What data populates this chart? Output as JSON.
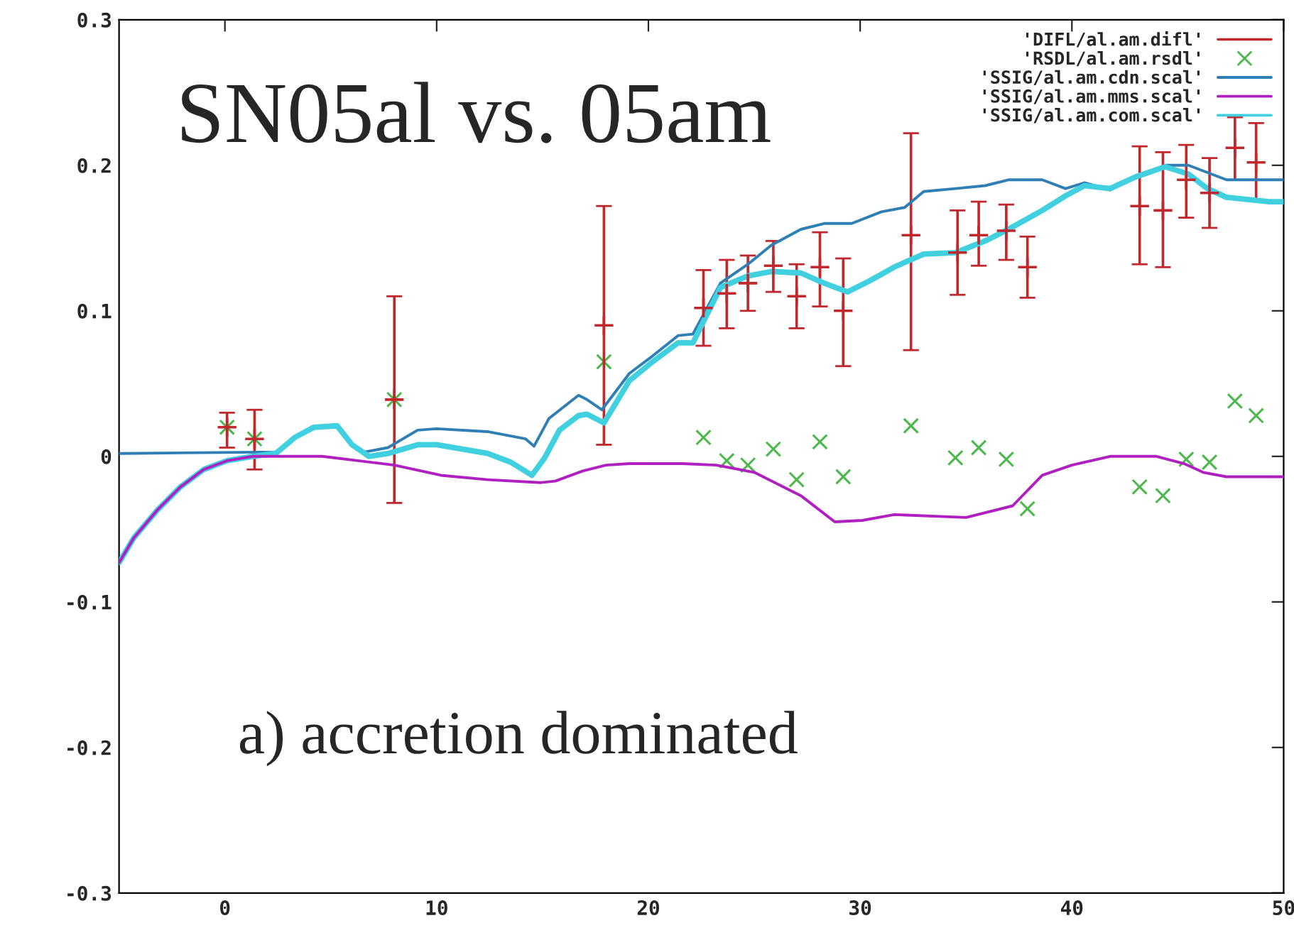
{
  "chart_data": {
    "type": "line",
    "title": "SN05al vs. 05am",
    "annotations": [
      "a) accretion dominated"
    ],
    "xlim": [
      -5,
      50
    ],
    "xticks": [
      0,
      10,
      20,
      30,
      40,
      50
    ],
    "ylim": [
      -0.3,
      0.3
    ],
    "yticks": [
      -0.3,
      -0.2,
      -0.1,
      0,
      0.1,
      0.2,
      0.3
    ],
    "legend": "top right",
    "grid": false,
    "series": [
      {
        "name": "'DIFL/al.am.difl'",
        "type": "scatter",
        "marker": "cross",
        "color": "#c0282d",
        "x": [
          0.1,
          1.4,
          8.0,
          17.9,
          22.6,
          23.7,
          24.7,
          25.9,
          27.0,
          28.1,
          29.2,
          32.4,
          34.6,
          35.6,
          36.9,
          37.9,
          43.2,
          44.3,
          45.4,
          46.5,
          47.7,
          48.7
        ],
        "values": [
          0.02,
          0.012,
          0.039,
          0.09,
          0.102,
          0.112,
          0.119,
          0.131,
          0.11,
          0.13,
          0.1,
          0.152,
          0.14,
          0.152,
          0.155,
          0.13,
          0.172,
          0.169,
          0.19,
          0.181,
          0.212,
          0.202
        ],
        "errors": [
          [
            0.006,
            0.03
          ],
          [
            -0.009,
            0.032
          ],
          [
            -0.032,
            0.11
          ],
          [
            0.008,
            0.172
          ],
          [
            0.076,
            0.128
          ],
          [
            0.088,
            0.135
          ],
          [
            0.1,
            0.138
          ],
          [
            0.113,
            0.148
          ],
          [
            0.088,
            0.132
          ],
          [
            0.103,
            0.154
          ],
          [
            0.062,
            0.136
          ],
          [
            0.073,
            0.222
          ],
          [
            0.111,
            0.169
          ],
          [
            0.131,
            0.175
          ],
          [
            0.135,
            0.173
          ],
          [
            0.109,
            0.151
          ],
          [
            0.132,
            0.213
          ],
          [
            0.13,
            0.209
          ],
          [
            0.164,
            0.214
          ],
          [
            0.157,
            0.205
          ],
          [
            0.19,
            0.233
          ],
          [
            0.176,
            0.229
          ]
        ]
      },
      {
        "name": "'RSDL/al.am.rsdl'",
        "type": "scatter",
        "marker": "cross",
        "color": "#4cb84c",
        "x": [
          0.1,
          1.4,
          8.0,
          17.9,
          22.6,
          23.7,
          24.7,
          25.9,
          27.0,
          28.1,
          29.2,
          32.4,
          34.5,
          35.6,
          36.9,
          37.9,
          43.2,
          44.3,
          45.4,
          46.5,
          47.7,
          48.7
        ],
        "values": [
          0.02,
          0.012,
          0.039,
          0.065,
          0.013,
          -0.003,
          -0.006,
          0.005,
          -0.016,
          0.01,
          -0.014,
          0.021,
          -0.001,
          0.006,
          -0.002,
          -0.036,
          -0.021,
          -0.027,
          -0.002,
          -0.004,
          0.038,
          0.028
        ]
      },
      {
        "name": "'SSIG/al.am.cdn.scal'",
        "marker": "none",
        "color": "#2f7fb5",
        "x": [
          -5,
          2.4,
          3.3,
          4.2,
          5.3,
          6.0,
          6.6,
          7.7,
          9.1,
          10.0,
          12.4,
          14.2,
          14.6,
          15.3,
          16.7,
          17.1,
          17.8,
          19.1,
          20.2,
          21.4,
          22.1,
          23.4,
          24.7,
          25.8,
          27.2,
          28.3,
          29.6,
          31.0,
          32.1,
          33.0,
          34.5,
          35.9,
          37.0,
          38.6,
          39.7,
          40.6,
          41.8,
          43.0,
          44.4,
          45.5,
          46.4,
          47.3,
          49.3,
          50
        ],
        "values": [
          0.002,
          0.003,
          0.013,
          0.02,
          0.021,
          0.008,
          0.003,
          0.006,
          0.018,
          0.019,
          0.017,
          0.012,
          0.007,
          0.026,
          0.042,
          0.039,
          0.032,
          0.057,
          0.069,
          0.083,
          0.084,
          0.119,
          0.132,
          0.145,
          0.156,
          0.16,
          0.16,
          0.168,
          0.171,
          0.182,
          0.184,
          0.186,
          0.19,
          0.19,
          0.184,
          0.188,
          0.183,
          0.192,
          0.2,
          0.2,
          0.195,
          0.19,
          0.19,
          0.19
        ]
      },
      {
        "name": "'SSIG/al.am.mms.scal'",
        "marker": "none",
        "color": "#b020c0",
        "x": [
          -5,
          -4.3,
          -3.2,
          -2.1,
          -1.0,
          0.1,
          1.3,
          2.4,
          4.6,
          8.0,
          10.2,
          12.4,
          14.9,
          15.6,
          16.9,
          18.0,
          19.1,
          21.6,
          23.2,
          25.0,
          27.2,
          28.8,
          30.1,
          31.6,
          35.0,
          37.2,
          38.6,
          40.0,
          41.8,
          44.0,
          45.3,
          46.2,
          47.3,
          49.3,
          50
        ],
        "values": [
          -0.073,
          -0.056,
          -0.037,
          -0.021,
          -0.009,
          -0.003,
          0.0,
          0.0,
          0.0,
          -0.006,
          -0.013,
          -0.016,
          -0.018,
          -0.017,
          -0.01,
          -0.006,
          -0.005,
          -0.005,
          -0.006,
          -0.011,
          -0.027,
          -0.045,
          -0.044,
          -0.04,
          -0.042,
          -0.034,
          -0.013,
          -0.006,
          0.0,
          0.0,
          -0.005,
          -0.011,
          -0.014,
          -0.014,
          -0.014
        ]
      },
      {
        "name": "'SSIG/al.am.com.scal'",
        "marker": "none",
        "color": "#40d0e0",
        "x": [
          -5,
          -4.3,
          -3.2,
          -2.1,
          -1.0,
          0.1,
          1.3,
          2.4,
          3.3,
          4.2,
          5.3,
          6.0,
          6.8,
          7.7,
          9.1,
          10.0,
          12.4,
          13.5,
          14.5,
          15.1,
          15.8,
          16.7,
          17.1,
          17.9,
          19.1,
          20.2,
          21.4,
          22.1,
          23.4,
          24.7,
          25.8,
          27.2,
          28.3,
          29.4,
          30.5,
          31.6,
          33.0,
          34.5,
          35.9,
          37.0,
          38.6,
          39.7,
          40.6,
          41.8,
          43.0,
          44.4,
          45.5,
          46.4,
          47.3,
          49.3,
          50
        ],
        "values": [
          -0.073,
          -0.056,
          -0.037,
          -0.021,
          -0.009,
          -0.003,
          0.0,
          0.002,
          0.013,
          0.02,
          0.021,
          0.008,
          0.0,
          0.002,
          0.008,
          0.008,
          0.002,
          -0.004,
          -0.013,
          -0.001,
          0.018,
          0.028,
          0.029,
          0.023,
          0.052,
          0.065,
          0.078,
          0.078,
          0.116,
          0.124,
          0.127,
          0.126,
          0.119,
          0.113,
          0.121,
          0.13,
          0.139,
          0.14,
          0.148,
          0.156,
          0.169,
          0.179,
          0.186,
          0.184,
          0.192,
          0.199,
          0.194,
          0.184,
          0.178,
          0.175,
          0.175
        ]
      }
    ]
  }
}
